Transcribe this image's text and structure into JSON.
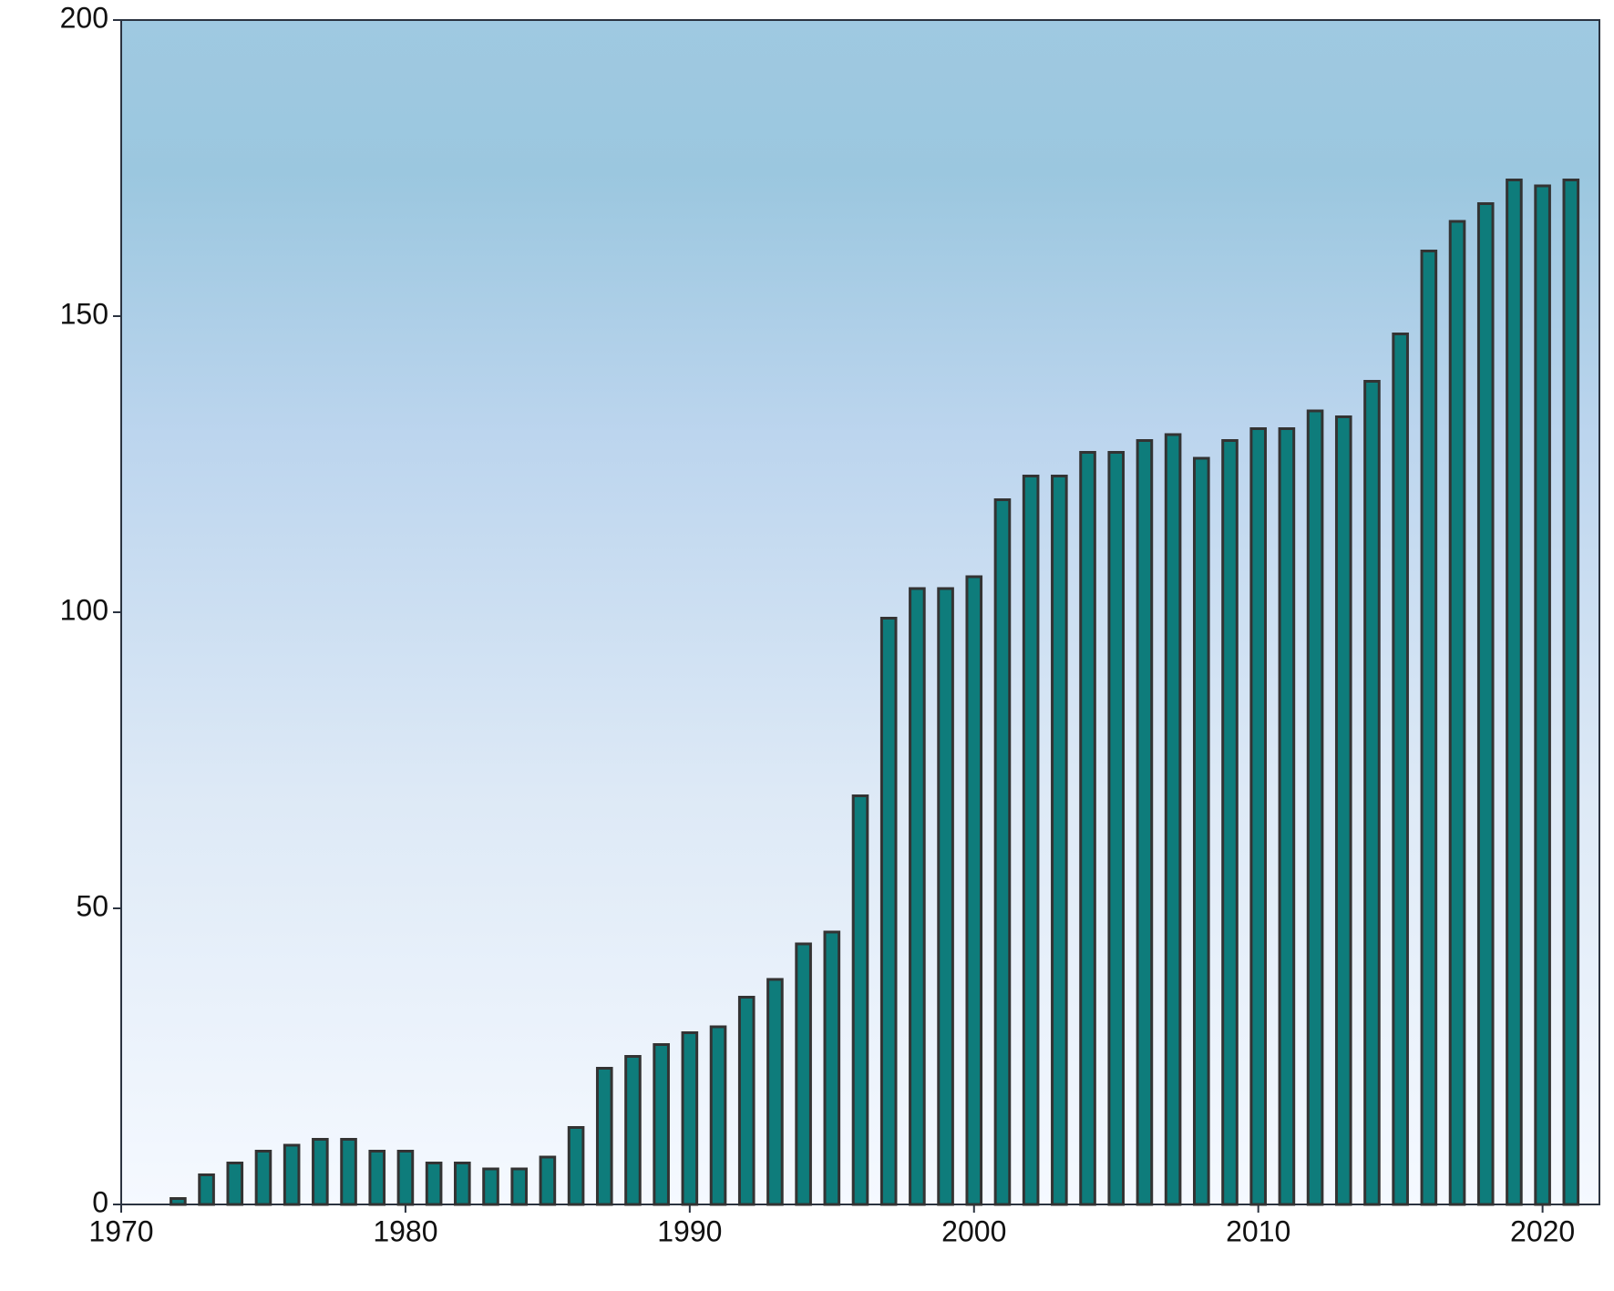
{
  "chart_data": {
    "type": "bar",
    "x": [
      1972,
      1973,
      1974,
      1975,
      1976,
      1977,
      1978,
      1979,
      1980,
      1981,
      1982,
      1983,
      1984,
      1985,
      1986,
      1987,
      1988,
      1989,
      1990,
      1991,
      1992,
      1993,
      1994,
      1995,
      1996,
      1997,
      1998,
      1999,
      2000,
      2001,
      2002,
      2003,
      2004,
      2005,
      2006,
      2007,
      2008,
      2009,
      2010,
      2011,
      2012,
      2013,
      2014,
      2015,
      2016,
      2017,
      2018,
      2019,
      2020,
      2021
    ],
    "values": [
      1,
      5,
      7,
      9,
      10,
      11,
      11,
      9,
      9,
      7,
      7,
      6,
      6,
      8,
      13,
      23,
      25,
      27,
      29,
      30,
      35,
      38,
      44,
      46,
      69,
      99,
      104,
      104,
      106,
      119,
      123,
      123,
      127,
      127,
      129,
      130,
      126,
      129,
      131,
      131,
      134,
      133,
      139,
      147,
      161,
      166,
      169,
      173,
      172,
      173
    ],
    "color": "#0e7c7b",
    "xlim": [
      1970,
      2022
    ],
    "xticks": [
      1970,
      1980,
      1990,
      2000,
      2010,
      2020
    ],
    "ylim": [
      0,
      200
    ],
    "yticks": [
      0,
      50,
      100,
      150,
      200
    ]
  }
}
